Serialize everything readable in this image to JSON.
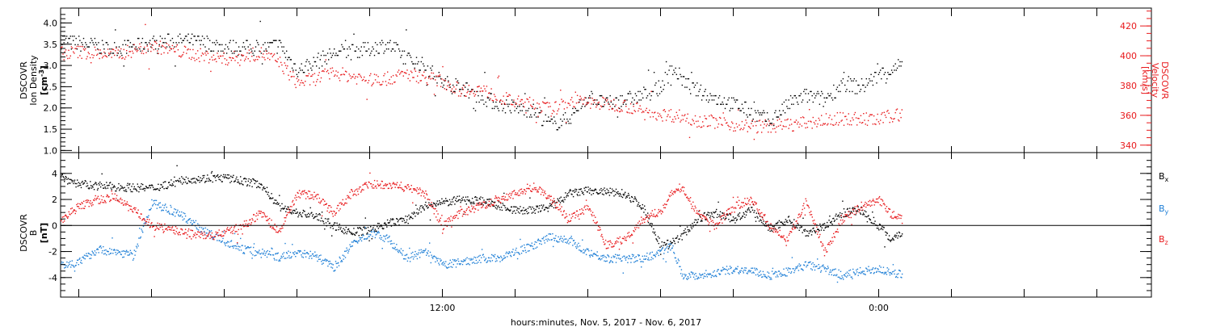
{
  "colors": {
    "density": "#000000",
    "velocity": "#e8191c",
    "bx": "#000000",
    "by": "#1f7fd6",
    "bz": "#e8191c",
    "frame": "#000000"
  },
  "footer": {
    "text": "hours:minutes, Nov.  5, 2017 - Nov.  6, 2017"
  },
  "time_axis": {
    "range_hours": [
      1.5,
      31.5
    ],
    "labels": [
      {
        "text": "12:00",
        "hour": 12
      },
      {
        "text": "0:00",
        "hour": 24
      }
    ],
    "major_tick_interval_hours": 2
  },
  "chart_data": [
    {
      "type": "scatter",
      "panel": "top",
      "left_axis": {
        "title_lines": [
          "DSCOVR",
          "Ion Density"
        ],
        "unit_base": "[cm",
        "unit_sup": "-3",
        "unit_end": "]",
        "ylim": [
          0.95,
          4.35
        ],
        "ticks": [
          "1.0",
          "1.5",
          "2.0",
          "2.5",
          "3.0",
          "3.5",
          "4.0"
        ]
      },
      "right_axis": {
        "title_lines": [
          "DSCOVR",
          "Velocity",
          "[km/s]"
        ],
        "ylim": [
          335,
          432
        ],
        "ticks": [
          "340",
          "360",
          "380",
          "400",
          "420"
        ]
      },
      "series": [
        {
          "key": "density",
          "axis": "left",
          "keypoints": [
            [
              1.5,
              3.6
            ],
            [
              2.2,
              3.5
            ],
            [
              3.0,
              3.4
            ],
            [
              4.0,
              3.55
            ],
            [
              5.0,
              3.6
            ],
            [
              6.0,
              3.45
            ],
            [
              7.0,
              3.4
            ],
            [
              7.5,
              3.5
            ],
            [
              8.0,
              2.9
            ],
            [
              8.5,
              3.1
            ],
            [
              9.0,
              3.3
            ],
            [
              10.0,
              3.4
            ],
            [
              10.5,
              3.5
            ],
            [
              11.0,
              3.2
            ],
            [
              11.5,
              3.0
            ],
            [
              12.0,
              2.6
            ],
            [
              12.5,
              2.5
            ],
            [
              13.0,
              2.3
            ],
            [
              13.5,
              2.1
            ],
            [
              14.0,
              2.0
            ],
            [
              14.5,
              1.95
            ],
            [
              15.0,
              1.6
            ],
            [
              15.5,
              1.8
            ],
            [
              16.0,
              2.3
            ],
            [
              16.5,
              2.1
            ],
            [
              17.0,
              2.2
            ],
            [
              17.5,
              2.3
            ],
            [
              18.0,
              2.5
            ],
            [
              18.3,
              2.95
            ],
            [
              18.8,
              2.5
            ],
            [
              19.3,
              2.3
            ],
            [
              20.0,
              2.1
            ],
            [
              20.5,
              1.9
            ],
            [
              21.0,
              1.7
            ],
            [
              21.5,
              2.1
            ],
            [
              22.0,
              2.3
            ],
            [
              22.5,
              2.2
            ],
            [
              23.0,
              2.6
            ],
            [
              23.5,
              2.5
            ],
            [
              24.0,
              2.8
            ],
            [
              24.3,
              2.9
            ],
            [
              24.6,
              3.0
            ]
          ],
          "x_end": 24.65
        },
        {
          "key": "velocity",
          "axis": "right",
          "keypoints": [
            [
              1.5,
              402
            ],
            [
              2.0,
              403
            ],
            [
              3.0,
              401
            ],
            [
              4.0,
              407
            ],
            [
              5.0,
              402
            ],
            [
              6.0,
              398
            ],
            [
              7.0,
              402
            ],
            [
              7.5,
              396
            ],
            [
              8.0,
              382
            ],
            [
              8.5,
              385
            ],
            [
              9.0,
              389
            ],
            [
              10.0,
              384
            ],
            [
              10.5,
              385
            ],
            [
              11.0,
              388
            ],
            [
              11.5,
              386
            ],
            [
              12.0,
              383
            ],
            [
              12.5,
              377
            ],
            [
              13.0,
              378
            ],
            [
              13.5,
              373
            ],
            [
              14.0,
              369
            ],
            [
              14.5,
              368
            ],
            [
              15.0,
              364
            ],
            [
              15.5,
              370
            ],
            [
              16.0,
              369
            ],
            [
              17.0,
              367
            ],
            [
              17.5,
              363
            ],
            [
              18.0,
              361
            ],
            [
              18.5,
              360
            ],
            [
              19.0,
              357
            ],
            [
              19.5,
              356
            ],
            [
              20.0,
              354
            ],
            [
              20.5,
              353
            ],
            [
              21.0,
              353
            ],
            [
              21.5,
              354
            ],
            [
              22.0,
              355
            ],
            [
              22.5,
              357
            ],
            [
              23.0,
              358
            ],
            [
              23.5,
              358
            ],
            [
              24.0,
              357
            ],
            [
              24.3,
              360
            ],
            [
              24.6,
              361
            ]
          ],
          "x_end": 24.65
        }
      ]
    },
    {
      "type": "scatter",
      "panel": "bottom",
      "left_axis": {
        "title_lines": [
          "DSCOVR",
          "B"
        ],
        "unit_base": "[nT]",
        "ylim": [
          -5.5,
          5.6
        ],
        "ticks": [
          "-4",
          "-2",
          "0",
          "2",
          "4"
        ],
        "zero_line": true
      },
      "legend": [
        {
          "text": "B",
          "sub": "x",
          "color_key": "bx"
        },
        {
          "text": "B",
          "sub": "y",
          "color_key": "by"
        },
        {
          "text": "B",
          "sub": "z",
          "color_key": "bz"
        }
      ],
      "series": [
        {
          "key": "bx",
          "name": "Bx",
          "keypoints": [
            [
              1.5,
              3.8
            ],
            [
              2.0,
              3.2
            ],
            [
              3.0,
              3.0
            ],
            [
              4.0,
              2.9
            ],
            [
              5.0,
              3.6
            ],
            [
              6.0,
              3.7
            ],
            [
              7.0,
              3.2
            ],
            [
              7.5,
              1.5
            ],
            [
              8.0,
              1.0
            ],
            [
              8.5,
              0.8
            ],
            [
              9.0,
              0.0
            ],
            [
              9.5,
              -0.5
            ],
            [
              10.0,
              -0.3
            ],
            [
              10.5,
              0.2
            ],
            [
              11.0,
              0.5
            ],
            [
              11.5,
              1.5
            ],
            [
              12.0,
              1.8
            ],
            [
              12.5,
              2.0
            ],
            [
              13.0,
              2.0
            ],
            [
              13.5,
              1.6
            ],
            [
              14.0,
              1.2
            ],
            [
              14.5,
              1.2
            ],
            [
              15.0,
              1.5
            ],
            [
              15.5,
              2.5
            ],
            [
              16.0,
              2.7
            ],
            [
              16.5,
              2.6
            ],
            [
              17.0,
              2.5
            ],
            [
              17.5,
              1.5
            ],
            [
              18.0,
              -1.5
            ],
            [
              18.5,
              -1.0
            ],
            [
              19.0,
              0.5
            ],
            [
              19.5,
              1.0
            ],
            [
              20.0,
              0.5
            ],
            [
              20.5,
              1.2
            ],
            [
              21.0,
              -0.2
            ],
            [
              21.5,
              0.5
            ],
            [
              22.0,
              -0.5
            ],
            [
              22.5,
              0.0
            ],
            [
              23.0,
              1.0
            ],
            [
              23.5,
              1.2
            ],
            [
              24.0,
              0.0
            ],
            [
              24.3,
              -1.0
            ],
            [
              24.6,
              -0.5
            ]
          ],
          "x_end": 24.65
        },
        {
          "key": "by",
          "name": "By",
          "keypoints": [
            [
              1.5,
              -3.0
            ],
            [
              2.0,
              -2.8
            ],
            [
              2.5,
              -1.8
            ],
            [
              3.0,
              -2.0
            ],
            [
              3.5,
              -2.2
            ],
            [
              4.0,
              1.8
            ],
            [
              4.5,
              1.2
            ],
            [
              5.0,
              0.5
            ],
            [
              5.5,
              -0.5
            ],
            [
              6.0,
              -1.2
            ],
            [
              6.5,
              -1.8
            ],
            [
              7.0,
              -2.0
            ],
            [
              7.5,
              -2.4
            ],
            [
              8.0,
              -2.0
            ],
            [
              8.5,
              -2.3
            ],
            [
              9.0,
              -3.2
            ],
            [
              9.5,
              -1.5
            ],
            [
              10.0,
              -0.5
            ],
            [
              10.5,
              -1.0
            ],
            [
              11.0,
              -2.5
            ],
            [
              11.5,
              -2.0
            ],
            [
              12.0,
              -3.0
            ],
            [
              12.5,
              -2.8
            ],
            [
              13.0,
              -2.5
            ],
            [
              13.5,
              -2.5
            ],
            [
              14.0,
              -2.0
            ],
            [
              14.5,
              -1.5
            ],
            [
              15.0,
              -0.8
            ],
            [
              15.5,
              -1.2
            ],
            [
              16.0,
              -2.0
            ],
            [
              16.5,
              -2.5
            ],
            [
              17.0,
              -2.5
            ],
            [
              17.5,
              -2.5
            ],
            [
              18.0,
              -2.0
            ],
            [
              18.3,
              -1.5
            ],
            [
              18.6,
              -3.8
            ],
            [
              19.0,
              -3.8
            ],
            [
              19.5,
              -3.6
            ],
            [
              20.0,
              -3.3
            ],
            [
              20.5,
              -3.5
            ],
            [
              21.0,
              -3.8
            ],
            [
              21.5,
              -3.5
            ],
            [
              22.0,
              -3.0
            ],
            [
              22.5,
              -3.3
            ],
            [
              23.0,
              -3.8
            ],
            [
              23.5,
              -3.5
            ],
            [
              24.0,
              -3.3
            ],
            [
              24.3,
              -3.6
            ],
            [
              24.6,
              -3.7
            ]
          ],
          "x_end": 24.65
        },
        {
          "key": "bz",
          "name": "Bz",
          "keypoints": [
            [
              1.5,
              0.5
            ],
            [
              2.0,
              1.5
            ],
            [
              2.5,
              2.0
            ],
            [
              3.0,
              2.2
            ],
            [
              3.5,
              1.2
            ],
            [
              4.0,
              0.0
            ],
            [
              4.5,
              -0.3
            ],
            [
              5.0,
              -0.5
            ],
            [
              5.5,
              -0.8
            ],
            [
              6.0,
              -0.5
            ],
            [
              6.5,
              0.0
            ],
            [
              7.0,
              1.0
            ],
            [
              7.5,
              -0.5
            ],
            [
              8.0,
              2.5
            ],
            [
              8.5,
              2.3
            ],
            [
              9.0,
              1.0
            ],
            [
              9.5,
              2.5
            ],
            [
              10.0,
              3.2
            ],
            [
              10.5,
              3.2
            ],
            [
              11.0,
              3.0
            ],
            [
              11.5,
              2.5
            ],
            [
              12.0,
              0.0
            ],
            [
              12.5,
              1.0
            ],
            [
              13.0,
              1.5
            ],
            [
              13.5,
              2.0
            ],
            [
              14.0,
              2.5
            ],
            [
              14.5,
              3.0
            ],
            [
              15.0,
              2.0
            ],
            [
              15.5,
              0.5
            ],
            [
              16.0,
              1.5
            ],
            [
              16.5,
              -1.5
            ],
            [
              17.0,
              -1.0
            ],
            [
              17.5,
              0.5
            ],
            [
              18.0,
              1.2
            ],
            [
              18.3,
              2.5
            ],
            [
              18.6,
              3.0
            ],
            [
              19.0,
              1.0
            ],
            [
              19.5,
              0.0
            ],
            [
              20.0,
              1.5
            ],
            [
              20.5,
              2.0
            ],
            [
              21.0,
              0.0
            ],
            [
              21.5,
              -1.0
            ],
            [
              22.0,
              2.0
            ],
            [
              22.5,
              -2.0
            ],
            [
              23.0,
              0.5
            ],
            [
              23.5,
              1.5
            ],
            [
              24.0,
              2.0
            ],
            [
              24.3,
              1.0
            ],
            [
              24.6,
              0.5
            ]
          ],
          "x_end": 24.65
        }
      ]
    }
  ]
}
